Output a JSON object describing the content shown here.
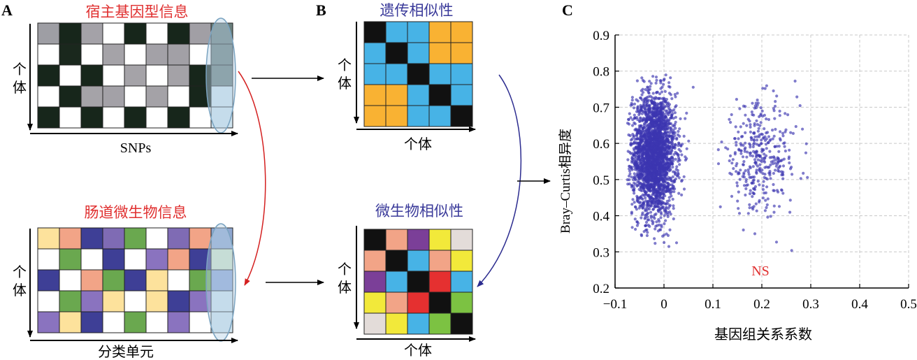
{
  "panels": {
    "A": {
      "letter": "A",
      "top": {
        "title": "宿主基因型信息",
        "ylabel": "个体",
        "xlabel": "SNPs",
        "grid": [
          [
            "#9e9ea4",
            "#17261b",
            "#a4a2a8",
            "#ffffff",
            "#17261b",
            "#ffffff",
            "#17261b",
            "#a19fa5",
            "#6a7f7c"
          ],
          [
            "#ffffff",
            "#1a281d",
            "#ffffff",
            "#a5a3a8",
            "#ffffff",
            "#a3a1a7",
            "#a2a0a6",
            "#ffffff",
            "#6a7f7c"
          ],
          [
            "#17261b",
            "#ffffff",
            "#17261b",
            "#ffffff",
            "#a5a3a8",
            "#ffffff",
            "#a4a2a7",
            "#17261b",
            "#6a7f7c"
          ],
          [
            "#ffffff",
            "#17261b",
            "#a5a3a8",
            "#a3a1a7",
            "#ffffff",
            "#a4a2a7",
            "#ffffff",
            "#17261b",
            "#cfe3ee"
          ],
          [
            "#17261b",
            "#ffffff",
            "#17261b",
            "#ffffff",
            "#17261b",
            "#ffffff",
            "#17261b",
            "#ffffff",
            "#cfe3ee"
          ]
        ]
      },
      "bottom": {
        "title": "肠道微生物信息",
        "ylabel": "个体",
        "xlabel": "分类单元",
        "grid": [
          [
            "#fde29c",
            "#f2a487",
            "#3e3f96",
            "#7f6bb4",
            "#6aa84f",
            "#ffffff",
            "#7f6bb4",
            "#f2a487",
            "#8ea6d0"
          ],
          [
            "#ffffff",
            "#6aa84f",
            "#ffffff",
            "#3e3f96",
            "#ffffff",
            "#8a73bf",
            "#f2a487",
            "#3e3f96",
            "#d2e6c8"
          ],
          [
            "#3e3f96",
            "#ffffff",
            "#f2a487",
            "#6aa84f",
            "#3e3f96",
            "#fde29c",
            "#ffffff",
            "#6aa84f",
            "#8fa7d8"
          ],
          [
            "#ffffff",
            "#6aa84f",
            "#8a73bf",
            "#fde29c",
            "#ffffff",
            "#fde29c",
            "#3e3f96",
            "#8a73bf",
            "#cfe3ee"
          ],
          [
            "#8a73bf",
            "#fde29c",
            "#3e3f96",
            "#ffffff",
            "#6aa84f",
            "#ffffff",
            "#8a73bf",
            "#ffffff",
            "#cfe3ee"
          ]
        ]
      }
    },
    "B": {
      "letter": "B",
      "top": {
        "title": "遗传相似性",
        "ylabel": "个体",
        "xlabel": "个体",
        "grid": [
          [
            "#111111",
            "#47b3e6",
            "#47b3e6",
            "#f9b233",
            "#f9b233"
          ],
          [
            "#47b3e6",
            "#111111",
            "#47b3e6",
            "#f9b233",
            "#f9b233"
          ],
          [
            "#47b3e6",
            "#47b3e6",
            "#111111",
            "#47b3e6",
            "#47b3e6"
          ],
          [
            "#f9b233",
            "#f9b233",
            "#47b3e6",
            "#111111",
            "#47b3e6"
          ],
          [
            "#f9b233",
            "#f9b233",
            "#47b3e6",
            "#47b3e6",
            "#111111"
          ]
        ]
      },
      "bottom": {
        "title": "微生物相似性",
        "ylabel": "个体",
        "xlabel": "个体",
        "grid": [
          [
            "#111111",
            "#f2a487",
            "#7b3f98",
            "#f2e93a",
            "#e3dcd9"
          ],
          [
            "#f2a487",
            "#111111",
            "#47b3e6",
            "#f2a487",
            "#f2e93a"
          ],
          [
            "#7b3f98",
            "#47b3e6",
            "#111111",
            "#e53030",
            "#47b3e6"
          ],
          [
            "#f2e93a",
            "#f2a487",
            "#e53030",
            "#111111",
            "#7cc242"
          ],
          [
            "#e3dcd9",
            "#f2e93a",
            "#47b3e6",
            "#7cc242",
            "#111111"
          ]
        ]
      }
    },
    "C": {
      "letter": "C",
      "annotation": "NS",
      "annotation_color": "#e03030",
      "point_color": "#3c35b0"
    }
  },
  "colors": {
    "red_title": "#e03030",
    "blue_title": "#3a3a9a",
    "red_arrow": "#d42020",
    "blue_arrow": "#2b2b8f"
  },
  "chart_data": {
    "type": "scatter",
    "title": "",
    "xlabel": "基因组关系系数",
    "ylabel": "Bray–Curtis相异度",
    "xlim": [
      -0.1,
      0.5
    ],
    "ylim": [
      0.2,
      0.9
    ],
    "xticks": [
      -0.1,
      0,
      0.1,
      0.2,
      0.3,
      0.4,
      0.5
    ],
    "xtick_labels": [
      "−0.1",
      "0",
      "0.1",
      "0.2",
      "0.3",
      "0.4",
      "0.5"
    ],
    "yticks": [
      0.2,
      0.3,
      0.4,
      0.5,
      0.6,
      0.7,
      0.8,
      0.9
    ],
    "ytick_labels": [
      "0.2",
      "0.3",
      "0.4",
      "0.5",
      "0.6",
      "0.7",
      "0.8",
      "0.9"
    ],
    "grid": true,
    "series": [
      {
        "clusters": [
          {
            "x_mean": -0.02,
            "x_sd": 0.022,
            "x_min": -0.075,
            "x_max": 0.09,
            "y_mean": 0.57,
            "y_sd": 0.085,
            "n": 2600
          },
          {
            "x_mean": 0.195,
            "x_sd": 0.04,
            "x_min": 0.11,
            "x_max": 0.31,
            "y_mean": 0.56,
            "y_sd": 0.075,
            "n": 380
          }
        ]
      }
    ]
  }
}
